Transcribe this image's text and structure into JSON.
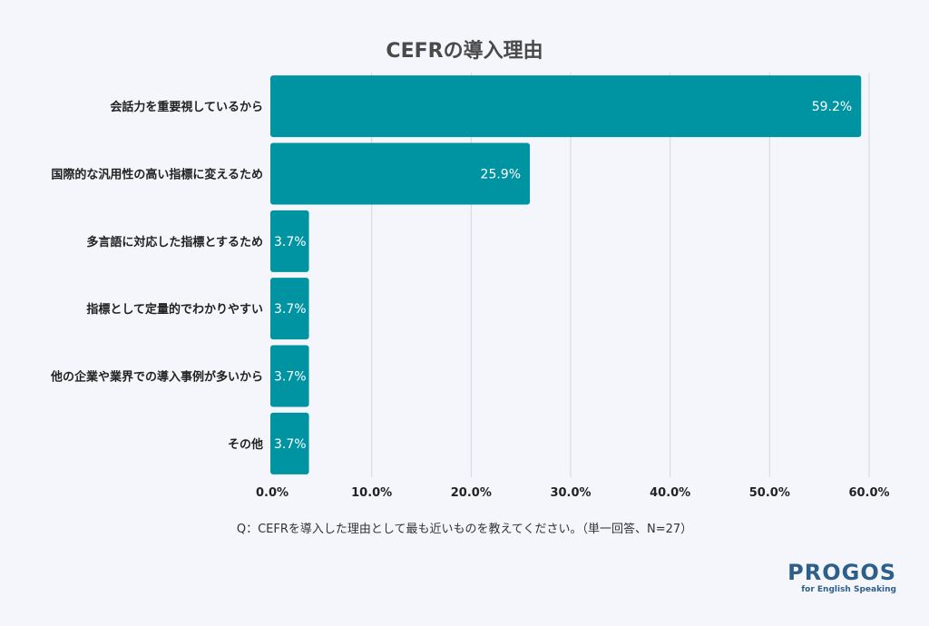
{
  "chart_data": {
    "type": "bar",
    "orientation": "horizontal",
    "title": "CEFRの導入理由",
    "categories": [
      "会話力を重要視しているから",
      "国際的な汎用性の高い指標に変えるため",
      "多言語に対応した指標とするため",
      "指標として定量的でわかりやすい",
      "他の企業や業界での導入事例が多いから",
      "その他"
    ],
    "values": [
      59.2,
      25.9,
      3.7,
      3.7,
      3.7,
      3.7
    ],
    "value_labels": [
      "59.2%",
      "25.9%",
      "3.7%",
      "3.7%",
      "3.7%",
      "3.7%"
    ],
    "xlim": [
      0,
      60
    ],
    "xticks": [
      0,
      10,
      20,
      30,
      40,
      50,
      60
    ],
    "xtick_labels": [
      "0.0%",
      "10.0%",
      "20.0%",
      "30.0%",
      "40.0%",
      "50.0%",
      "60.0%"
    ],
    "grid": true,
    "legend": "none",
    "bar_color": "#0094a3",
    "grid_color": "#d4d6dc"
  },
  "footnote": "Q：CEFRを導入した理由として最も近いものを教えてください。（単一回答、N=27）",
  "logo": {
    "name": "PROGOS",
    "tagline": "for English Speaking",
    "color": "#2c5f8a"
  }
}
